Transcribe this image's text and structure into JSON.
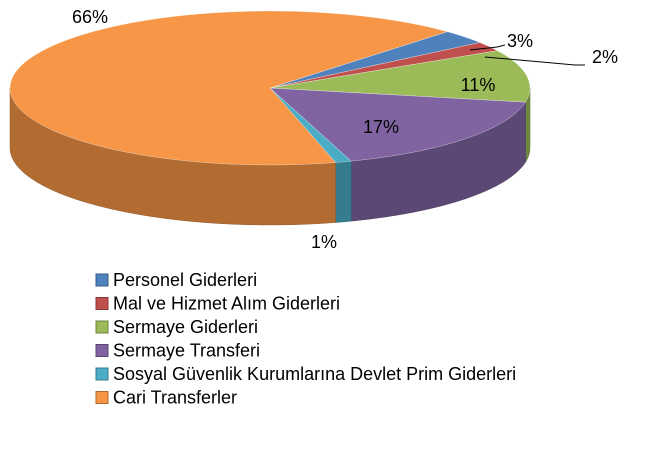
{
  "chart_data": {
    "type": "pie3d",
    "categories": [
      "Personel Giderleri",
      "Mal ve Hizmet Alım Giderleri",
      "Sermaye Giderleri",
      "Sermaye Transferi",
      "Sosyal Güvenlik Kurumlarına Devlet Prim Giderleri",
      "Cari Transferler"
    ],
    "values": [
      3,
      2,
      11,
      17,
      1,
      66
    ],
    "value_labels": [
      "3%",
      "2%",
      "11%",
      "17%",
      "1%",
      "66%"
    ],
    "colors": [
      "#4f81bd",
      "#c0504d",
      "#9bbb59",
      "#8064a2",
      "#4bacc6",
      "#f79646"
    ],
    "legend": "bottom"
  }
}
